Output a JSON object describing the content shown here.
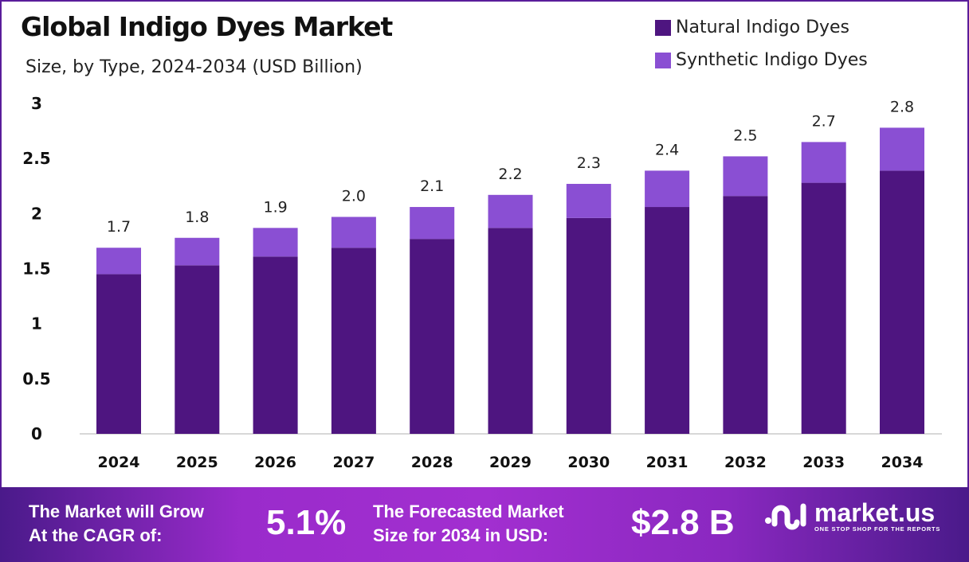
{
  "chart_data": {
    "type": "bar",
    "stacked": true,
    "title": "Global Indigo Dyes Market",
    "subtitle": "Size, by Type, 2024-2034 (USD Billion)",
    "categories": [
      "2024",
      "2025",
      "2026",
      "2027",
      "2028",
      "2029",
      "2030",
      "2031",
      "2032",
      "2033",
      "2034"
    ],
    "series": [
      {
        "name": "Natural Indigo Dyes",
        "color": "#4e1580",
        "values": [
          1.45,
          1.53,
          1.61,
          1.69,
          1.77,
          1.87,
          1.96,
          2.06,
          2.16,
          2.28,
          2.39
        ]
      },
      {
        "name": "Synthetic Indigo Dyes",
        "color": "#8a4fd3",
        "values": [
          0.24,
          0.25,
          0.26,
          0.28,
          0.29,
          0.3,
          0.31,
          0.33,
          0.36,
          0.37,
          0.39
        ]
      }
    ],
    "totals_labels": [
      "1.7",
      "1.8",
      "1.9",
      "2.0",
      "2.1",
      "2.2",
      "2.3",
      "2.4",
      "2.5",
      "2.7",
      "2.8"
    ],
    "yticks": [
      "0",
      "0.5",
      "1",
      "1.5",
      "2",
      "2.5",
      "3"
    ],
    "ylim": [
      0,
      3
    ],
    "grid": false,
    "legend": "top-right"
  },
  "footer": {
    "cagr_text_1": "The Market will Grow",
    "cagr_text_2": "At the CAGR of:",
    "cagr_value": "5.1%",
    "forecast_text_1": "The Forecasted Market",
    "forecast_text_2": "Size for 2034 in USD:",
    "forecast_value": "$2.8 B",
    "logo_name": "market.us",
    "logo_tagline": "ONE STOP SHOP FOR THE REPORTS"
  }
}
